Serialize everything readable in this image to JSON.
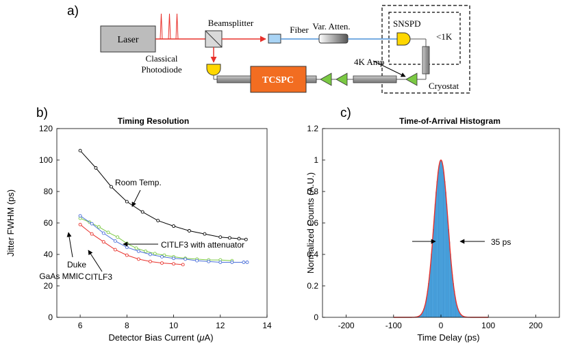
{
  "panel_labels": {
    "a": "a)",
    "b": "b)",
    "c": "c)"
  },
  "diagram": {
    "laser": "Laser",
    "beamsplitter": "Beamsplitter",
    "fiber": "Fiber",
    "attenuator": "Var. Atten.",
    "snspd": "SNSPD",
    "temperature": "<1K",
    "amp_4k": "4K Amp",
    "cryostat": "Cryostat",
    "photodiode_line1": "Classical",
    "photodiode_line2": "Photodiode",
    "tcspc": "TCSPC",
    "colors": {
      "laser_box": "#bcbcbc",
      "tcspc_box": "#f26d21",
      "beam": "#e8302a",
      "fiber": "#4a90d9",
      "amp": "#7ac943",
      "detector": "#ffd700",
      "splitter": "#d9d9d9"
    }
  },
  "chart_data": [
    {
      "type": "line",
      "title": "Timing Resolution",
      "xlabel_prefix": "Detector Bias Current (",
      "xlabel_mu": "μ",
      "xlabel_suffix": "A)",
      "ylabel": "Jitter FWHM (ps)",
      "xlim": [
        5,
        14
      ],
      "ylim": [
        0,
        120
      ],
      "xticks": [
        6,
        8,
        10,
        12,
        14
      ],
      "yticks": [
        0,
        20,
        40,
        60,
        80,
        100,
        120
      ],
      "xtick_labels": [
        "6",
        "8",
        "10",
        "12",
        "14"
      ],
      "ytick_labels": [
        "0",
        "20",
        "40",
        "60",
        "80",
        "100",
        "120"
      ],
      "series": [
        {
          "name": "Room Temp.",
          "color": "#000000",
          "x": [
            6.0,
            6.67,
            7.33,
            8.0,
            8.67,
            9.33,
            10.0,
            10.67,
            11.33,
            12.0,
            12.4,
            12.8,
            13.1
          ],
          "y": [
            106,
            95,
            83,
            73.5,
            67,
            61.5,
            58,
            55,
            53,
            51,
            50.5,
            50,
            49.5
          ]
        },
        {
          "name": "CITLF3 with attenuator",
          "color": "#7ac943",
          "x": [
            6.0,
            6.4,
            6.8,
            7.2,
            7.6,
            8.0,
            8.4,
            8.8,
            9.2,
            9.6,
            10.0,
            10.5,
            11.0,
            11.5,
            12.0,
            12.5
          ],
          "y": [
            63,
            60.5,
            57.5,
            54,
            51,
            47,
            44,
            42,
            40.5,
            39.5,
            38.5,
            37.5,
            37,
            36.5,
            36.5,
            36
          ]
        },
        {
          "name": "Duke GaAs MMIC",
          "color": "#4a6fd9",
          "x": [
            6.0,
            6.5,
            7.0,
            7.5,
            8.0,
            8.5,
            9.0,
            9.5,
            10.0,
            10.5,
            11.0,
            11.5,
            12.0,
            12.5,
            13.0,
            13.15
          ],
          "y": [
            64.5,
            59.5,
            53.5,
            48.5,
            44.5,
            42,
            40,
            38.5,
            37.5,
            37,
            36,
            35.5,
            35,
            35,
            35,
            35
          ]
        },
        {
          "name": "CITLF3",
          "color": "#e8302a",
          "x": [
            6.0,
            6.5,
            7.0,
            7.5,
            8.0,
            8.5,
            9.0,
            9.5,
            10.0,
            10.4
          ],
          "y": [
            59,
            53,
            48,
            43,
            39.5,
            37,
            35.5,
            34.5,
            34,
            33.5
          ]
        }
      ],
      "annotations": {
        "room_temp": "Room Temp.",
        "attenuator": "CITLF3 with attenuator",
        "duke_line1": "Duke",
        "duke_line2": "GaAs MMIC",
        "citlf3": "CITLF3"
      }
    },
    {
      "type": "bar",
      "title": "Time-of-Arrival Histogram",
      "xlabel": "Time Delay (ps)",
      "ylabel": "Normalized Counts (A.U.)",
      "xlim": [
        -250,
        250
      ],
      "ylim": [
        0,
        1.2
      ],
      "xticks": [
        -200,
        -100,
        0,
        100,
        200
      ],
      "yticks": [
        0,
        0.2,
        0.4,
        0.6,
        0.8,
        1.0,
        1.2
      ],
      "xtick_labels": [
        "-200",
        "-100",
        "0",
        "100",
        "200"
      ],
      "ytick_labels": [
        "0",
        "0.2",
        "0.4",
        "0.6",
        "0.8",
        "1",
        "1.2"
      ],
      "bar_color": "#4aa3df",
      "fit_color": "#e8302a",
      "bin_width_ps": 2,
      "fwhm_ps": 35,
      "center_ps": 0,
      "peak": 1.0,
      "fwhm_label": "35 ps"
    }
  ]
}
